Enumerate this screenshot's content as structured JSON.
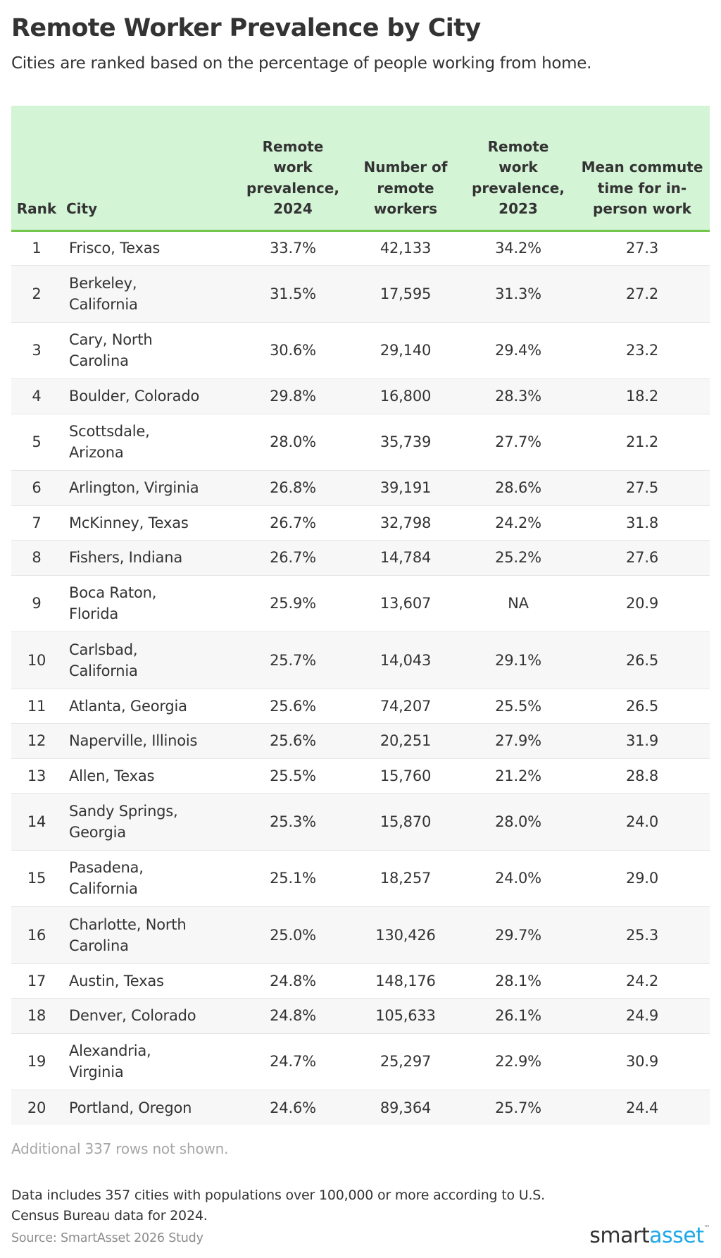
{
  "header": {
    "title": "Remote Worker Prevalence by City",
    "subtitle": "Cities are ranked based on the percentage of people working from home."
  },
  "colors": {
    "header_bg": "#d4f4d6",
    "header_border": "#74c64c",
    "row_alt_bg": "#f7f7f7",
    "logo_smart": "#333333",
    "logo_asset": "#1fa8e6"
  },
  "table": {
    "columns": [
      {
        "key": "rank",
        "label": "Rank"
      },
      {
        "key": "city",
        "label": "City"
      },
      {
        "key": "prev_2024",
        "label": "Remote work prevalence, 2024"
      },
      {
        "key": "num_remote",
        "label": "Number of remote workers"
      },
      {
        "key": "prev_2023",
        "label": "Remote work prevalence, 2023"
      },
      {
        "key": "commute",
        "label": "Mean commute time for in-person work"
      }
    ],
    "rows": [
      {
        "rank": "1",
        "city": "Frisco, Texas",
        "prev_2024": "33.7%",
        "num_remote": "42,133",
        "prev_2023": "34.2%",
        "commute": "27.3"
      },
      {
        "rank": "2",
        "city": "Berkeley, California",
        "prev_2024": "31.5%",
        "num_remote": "17,595",
        "prev_2023": "31.3%",
        "commute": "27.2"
      },
      {
        "rank": "3",
        "city": "Cary, North Carolina",
        "prev_2024": "30.6%",
        "num_remote": "29,140",
        "prev_2023": "29.4%",
        "commute": "23.2"
      },
      {
        "rank": "4",
        "city": "Boulder, Colorado",
        "prev_2024": "29.8%",
        "num_remote": "16,800",
        "prev_2023": "28.3%",
        "commute": "18.2"
      },
      {
        "rank": "5",
        "city": "Scottsdale, Arizona",
        "prev_2024": "28.0%",
        "num_remote": "35,739",
        "prev_2023": "27.7%",
        "commute": "21.2"
      },
      {
        "rank": "6",
        "city": "Arlington, Virginia",
        "prev_2024": "26.8%",
        "num_remote": "39,191",
        "prev_2023": "28.6%",
        "commute": "27.5"
      },
      {
        "rank": "7",
        "city": "McKinney, Texas",
        "prev_2024": "26.7%",
        "num_remote": "32,798",
        "prev_2023": "24.2%",
        "commute": "31.8"
      },
      {
        "rank": "8",
        "city": "Fishers, Indiana",
        "prev_2024": "26.7%",
        "num_remote": "14,784",
        "prev_2023": "25.2%",
        "commute": "27.6"
      },
      {
        "rank": "9",
        "city": "Boca Raton, Florida",
        "prev_2024": "25.9%",
        "num_remote": "13,607",
        "prev_2023": "NA",
        "commute": "20.9"
      },
      {
        "rank": "10",
        "city": "Carlsbad, California",
        "prev_2024": "25.7%",
        "num_remote": "14,043",
        "prev_2023": "29.1%",
        "commute": "26.5"
      },
      {
        "rank": "11",
        "city": "Atlanta, Georgia",
        "prev_2024": "25.6%",
        "num_remote": "74,207",
        "prev_2023": "25.5%",
        "commute": "26.5"
      },
      {
        "rank": "12",
        "city": "Naperville, Illinois",
        "prev_2024": "25.6%",
        "num_remote": "20,251",
        "prev_2023": "27.9%",
        "commute": "31.9"
      },
      {
        "rank": "13",
        "city": "Allen, Texas",
        "prev_2024": "25.5%",
        "num_remote": "15,760",
        "prev_2023": "21.2%",
        "commute": "28.8"
      },
      {
        "rank": "14",
        "city": "Sandy Springs, Georgia",
        "prev_2024": "25.3%",
        "num_remote": "15,870",
        "prev_2023": "28.0%",
        "commute": "24.0"
      },
      {
        "rank": "15",
        "city": "Pasadena, California",
        "prev_2024": "25.1%",
        "num_remote": "18,257",
        "prev_2023": "24.0%",
        "commute": "29.0"
      },
      {
        "rank": "16",
        "city": "Charlotte, North Carolina",
        "prev_2024": "25.0%",
        "num_remote": "130,426",
        "prev_2023": "29.7%",
        "commute": "25.3"
      },
      {
        "rank": "17",
        "city": "Austin, Texas",
        "prev_2024": "24.8%",
        "num_remote": "148,176",
        "prev_2023": "28.1%",
        "commute": "24.2"
      },
      {
        "rank": "18",
        "city": "Denver, Colorado",
        "prev_2024": "24.8%",
        "num_remote": "105,633",
        "prev_2023": "26.1%",
        "commute": "24.9"
      },
      {
        "rank": "19",
        "city": "Alexandria, Virginia",
        "prev_2024": "24.7%",
        "num_remote": "25,297",
        "prev_2023": "22.9%",
        "commute": "30.9"
      },
      {
        "rank": "20",
        "city": "Portland, Oregon",
        "prev_2024": "24.6%",
        "num_remote": "89,364",
        "prev_2023": "25.7%",
        "commute": "24.4"
      }
    ]
  },
  "footer": {
    "rows_note": "Additional 337 rows not shown.",
    "footnote": "Data includes 357 cities with populations over 100,000 or more according to U.S. Census Bureau data for 2024.",
    "source": "Source: SmartAsset 2026 Study",
    "logo": {
      "part1": "smart",
      "part2": "asset",
      "tm": "™"
    }
  }
}
